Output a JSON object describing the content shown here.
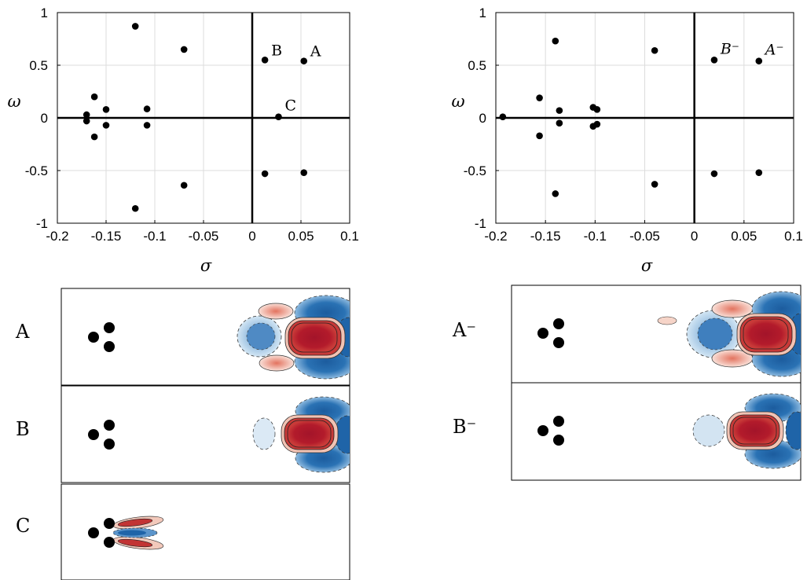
{
  "chart_data": [
    {
      "type": "scatter",
      "xlabel": "σ",
      "ylabel": "ω",
      "xlim": [
        -0.2,
        0.1
      ],
      "ylim": [
        -1,
        1
      ],
      "xticks": [
        "-0.2",
        "-0.15",
        "-0.1",
        "-0.05",
        "0",
        "0.05",
        "0.1"
      ],
      "yticks": [
        "1",
        "0.5",
        "0",
        "-0.5",
        "-1"
      ],
      "grid": true,
      "points": [
        {
          "x": -0.12,
          "y": 0.87
        },
        {
          "x": -0.07,
          "y": 0.65
        },
        {
          "x": -0.162,
          "y": 0.2
        },
        {
          "x": -0.15,
          "y": 0.08
        },
        {
          "x": -0.108,
          "y": 0.085
        },
        {
          "x": -0.17,
          "y": 0.03
        },
        {
          "x": -0.17,
          "y": -0.03
        },
        {
          "x": -0.15,
          "y": -0.07
        },
        {
          "x": -0.108,
          "y": -0.07
        },
        {
          "x": -0.162,
          "y": -0.18
        },
        {
          "x": -0.07,
          "y": -0.64
        },
        {
          "x": -0.12,
          "y": -0.86
        },
        {
          "x": 0.013,
          "y": 0.55
        },
        {
          "x": 0.053,
          "y": 0.54
        },
        {
          "x": 0.027,
          "y": 0.01
        },
        {
          "x": 0.013,
          "y": -0.53
        },
        {
          "x": 0.053,
          "y": -0.52
        }
      ],
      "annotations": [
        {
          "text": "B",
          "x": 0.013,
          "y": 0.55
        },
        {
          "text": "A",
          "x": 0.053,
          "y": 0.54
        },
        {
          "text": "C",
          "x": 0.027,
          "y": 0.01
        }
      ]
    },
    {
      "type": "scatter",
      "xlabel": "σ",
      "ylabel": "ω",
      "xlim": [
        -0.2,
        0.1
      ],
      "ylim": [
        -1,
        1
      ],
      "xticks": [
        "-0.2",
        "-0.15",
        "-0.1",
        "-0.05",
        "0",
        "0.05",
        "0.1"
      ],
      "yticks": [
        "1",
        "0.5",
        "0",
        "-0.5",
        "-1"
      ],
      "grid": true,
      "points": [
        {
          "x": -0.14,
          "y": 0.73
        },
        {
          "x": -0.04,
          "y": 0.64
        },
        {
          "x": -0.156,
          "y": 0.19
        },
        {
          "x": -0.136,
          "y": 0.07
        },
        {
          "x": -0.102,
          "y": 0.1
        },
        {
          "x": -0.098,
          "y": 0.08
        },
        {
          "x": -0.193,
          "y": 0.01
        },
        {
          "x": -0.136,
          "y": -0.05
        },
        {
          "x": -0.102,
          "y": -0.08
        },
        {
          "x": -0.098,
          "y": -0.06
        },
        {
          "x": -0.156,
          "y": -0.17
        },
        {
          "x": -0.04,
          "y": -0.63
        },
        {
          "x": -0.14,
          "y": -0.72
        },
        {
          "x": 0.02,
          "y": 0.55
        },
        {
          "x": 0.065,
          "y": 0.54
        },
        {
          "x": 0.02,
          "y": -0.53
        },
        {
          "x": 0.065,
          "y": -0.52
        }
      ],
      "annotations": [
        {
          "text": "B⁻",
          "x": 0.02,
          "y": 0.55
        },
        {
          "text": "A⁻",
          "x": 0.065,
          "y": 0.54
        }
      ]
    }
  ],
  "mode_panels": [
    {
      "label": "A"
    },
    {
      "label": "B"
    },
    {
      "label": "C"
    },
    {
      "label": "A⁻"
    },
    {
      "label": "B⁻"
    }
  ],
  "colors": {
    "positive": "#b31b2b",
    "positive_light": "#f0b8a8",
    "negative": "#1f64a8",
    "negative_light": "#a9cbe6",
    "cylinder": "#000000"
  }
}
